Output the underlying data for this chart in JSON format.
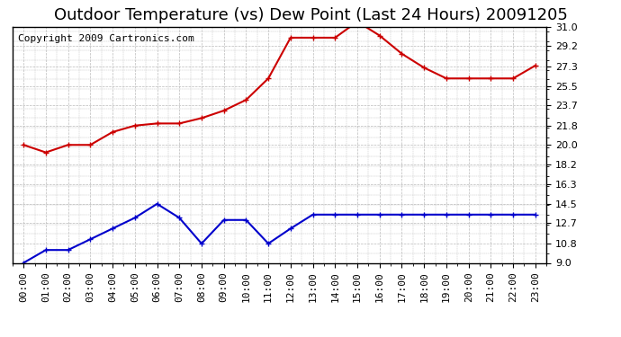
{
  "title": "Outdoor Temperature (vs) Dew Point (Last 24 Hours) 20091205",
  "copyright_text": "Copyright 2009 Cartronics.com",
  "x_labels": [
    "00:00",
    "01:00",
    "02:00",
    "03:00",
    "04:00",
    "05:00",
    "06:00",
    "07:00",
    "08:00",
    "09:00",
    "10:00",
    "11:00",
    "12:00",
    "13:00",
    "14:00",
    "15:00",
    "16:00",
    "17:00",
    "18:00",
    "19:00",
    "20:00",
    "21:00",
    "22:00",
    "23:00"
  ],
  "temp_data": [
    20.0,
    19.3,
    20.0,
    20.0,
    21.2,
    21.8,
    22.0,
    22.0,
    22.5,
    23.2,
    24.2,
    26.2,
    30.0,
    30.0,
    30.0,
    31.5,
    30.2,
    28.5,
    27.2,
    26.2,
    26.2,
    26.2,
    26.2,
    27.4
  ],
  "dew_data": [
    9.0,
    10.2,
    10.2,
    11.2,
    12.2,
    13.2,
    14.5,
    13.2,
    10.8,
    13.0,
    13.0,
    10.8,
    12.2,
    13.5,
    13.5,
    13.5,
    13.5,
    13.5,
    13.5,
    13.5,
    13.5,
    13.5,
    13.5,
    13.5
  ],
  "temp_color": "#cc0000",
  "dew_color": "#0000cc",
  "bg_color": "#ffffff",
  "plot_bg_color": "#ffffff",
  "grid_color": "#bbbbbb",
  "ylim": [
    9.0,
    31.0
  ],
  "yticks": [
    9.0,
    10.8,
    12.7,
    14.5,
    16.3,
    18.2,
    20.0,
    21.8,
    23.7,
    25.5,
    27.3,
    29.2,
    31.0
  ],
  "title_fontsize": 13,
  "copyright_fontsize": 8,
  "tick_fontsize": 8,
  "marker": "+",
  "marker_size": 5,
  "linewidth": 1.5
}
